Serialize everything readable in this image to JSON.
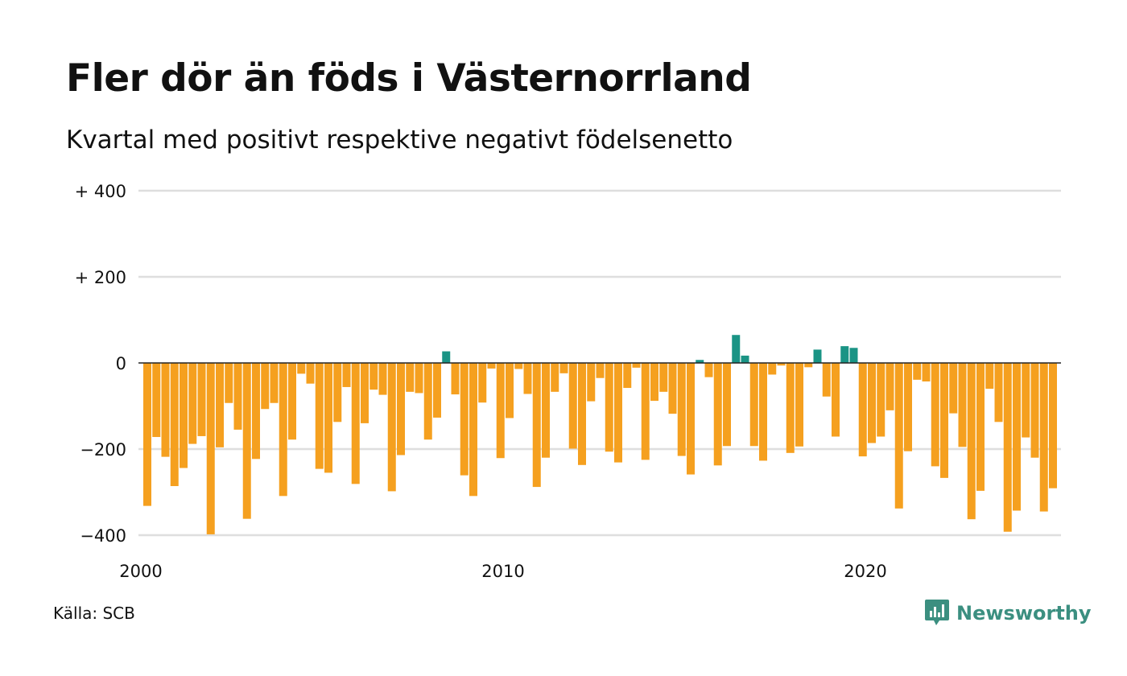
{
  "header": {
    "title": "Fler dör än föds i Västernorrland",
    "subtitle": "Kvartal med positivt respektive negativt födelsenetto"
  },
  "footer": {
    "source": "Källa: SCB",
    "brand": "Newsworthy",
    "brand_icon": "newsworthy-chart-bubble-icon"
  },
  "colors": {
    "positive": "#1a9485",
    "negative": "#f5a01f",
    "grid": "#dedede",
    "zero_line": "#222222",
    "brand": "#3b8f80"
  },
  "chart_data": {
    "type": "bar",
    "title": "Fler dör än föds i Västernorrland",
    "subtitle": "Kvartal med positivt respektive negativt födelsenetto",
    "xlabel": "",
    "ylabel": "",
    "x_start": "2000-Q1",
    "x_ticks": [
      {
        "label": "2000",
        "year": 2000
      },
      {
        "label": "2010",
        "year": 2010
      },
      {
        "label": "2020",
        "year": 2020
      }
    ],
    "y_ticks": [
      {
        "label": "+ 400",
        "value": 400
      },
      {
        "label": "+ 200",
        "value": 200
      },
      {
        "label": "0",
        "value": 0
      },
      {
        "label": "−200",
        "value": -200
      },
      {
        "label": "−400",
        "value": -400
      }
    ],
    "ylim": [
      -400,
      400
    ],
    "grid": true,
    "legend": "none",
    "categories": [
      "2000-Q1",
      "2000-Q2",
      "2000-Q3",
      "2000-Q4",
      "2001-Q1",
      "2001-Q2",
      "2001-Q3",
      "2001-Q4",
      "2002-Q1",
      "2002-Q2",
      "2002-Q3",
      "2002-Q4",
      "2003-Q1",
      "2003-Q2",
      "2003-Q3",
      "2003-Q4",
      "2004-Q1",
      "2004-Q2",
      "2004-Q3",
      "2004-Q4",
      "2005-Q1",
      "2005-Q2",
      "2005-Q3",
      "2005-Q4",
      "2006-Q1",
      "2006-Q2",
      "2006-Q3",
      "2006-Q4",
      "2007-Q1",
      "2007-Q2",
      "2007-Q3",
      "2007-Q4",
      "2008-Q1",
      "2008-Q2",
      "2008-Q3",
      "2008-Q4",
      "2009-Q1",
      "2009-Q2",
      "2009-Q3",
      "2009-Q4",
      "2010-Q1",
      "2010-Q2",
      "2010-Q3",
      "2010-Q4",
      "2011-Q1",
      "2011-Q2",
      "2011-Q3",
      "2011-Q4",
      "2012-Q1",
      "2012-Q2",
      "2012-Q3",
      "2012-Q4",
      "2013-Q1",
      "2013-Q2",
      "2013-Q3",
      "2013-Q4",
      "2014-Q1",
      "2014-Q2",
      "2014-Q3",
      "2014-Q4",
      "2015-Q1",
      "2015-Q2",
      "2015-Q3",
      "2015-Q4",
      "2016-Q1",
      "2016-Q2",
      "2016-Q3",
      "2016-Q4",
      "2017-Q1",
      "2017-Q2",
      "2017-Q3",
      "2017-Q4",
      "2018-Q1",
      "2018-Q2",
      "2018-Q3",
      "2018-Q4",
      "2019-Q1",
      "2019-Q2",
      "2019-Q3",
      "2019-Q4",
      "2020-Q1",
      "2020-Q2",
      "2020-Q3",
      "2020-Q4",
      "2021-Q1",
      "2021-Q2",
      "2021-Q3",
      "2021-Q4",
      "2022-Q1",
      "2022-Q2",
      "2022-Q3",
      "2022-Q4",
      "2023-Q1",
      "2023-Q2",
      "2023-Q3",
      "2023-Q4",
      "2024-Q1",
      "2024-Q2",
      "2024-Q3",
      "2024-Q4",
      "2025-Q1"
    ],
    "values": [
      -332,
      -172,
      -218,
      -286,
      -244,
      -188,
      -170,
      -398,
      -196,
      -93,
      -155,
      -362,
      -223,
      -107,
      -93,
      -309,
      -178,
      -25,
      -48,
      -246,
      -255,
      -137,
      -56,
      -281,
      -140,
      -62,
      -74,
      -298,
      -214,
      -67,
      -70,
      -178,
      -127,
      27,
      -73,
      -261,
      -309,
      -92,
      -13,
      -221,
      -128,
      -14,
      -72,
      -288,
      -220,
      -67,
      -24,
      -199,
      -237,
      -89,
      -35,
      -206,
      -231,
      -58,
      -11,
      -225,
      -88,
      -67,
      -118,
      -216,
      -259,
      7,
      -33,
      -238,
      -193,
      65,
      17,
      -193,
      -227,
      -27,
      -6,
      -209,
      -194,
      -10,
      31,
      -78,
      -171,
      39,
      35,
      -217,
      -186,
      -171,
      -110,
      -338,
      -205,
      -39,
      -43,
      -240,
      -267,
      -117,
      -195,
      -363,
      -297,
      -60,
      -137,
      -392,
      -343,
      -173,
      -220,
      -345,
      -291
    ]
  }
}
